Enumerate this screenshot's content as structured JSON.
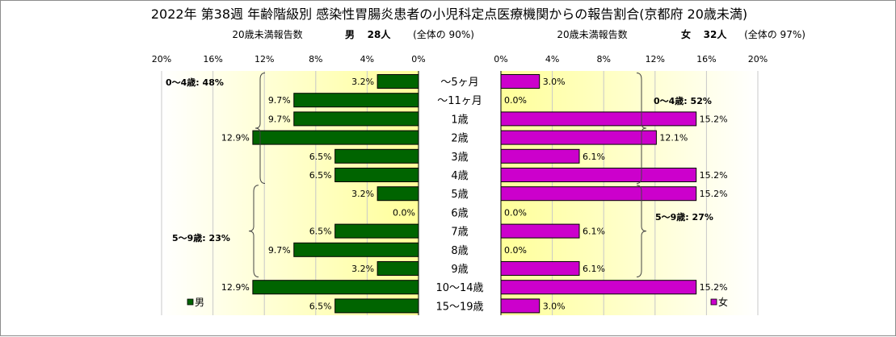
{
  "chart_data": {
    "type": "bar",
    "title": "2022年 第38週 年齢階級別 感染性胃腸炎患者の小児科定点医療機関からの報告割合(京都府 20歳未満)",
    "categories": [
      "～5ヶ月",
      "～11ヶ月",
      "1歳",
      "2歳",
      "3歳",
      "4歳",
      "5歳",
      "6歳",
      "7歳",
      "8歳",
      "9歳",
      "10～14歳",
      "15～19歳"
    ],
    "xlim": [
      0,
      20
    ],
    "tick_labels": [
      "0%",
      "4%",
      "8%",
      "12%",
      "16%",
      "20%"
    ],
    "series": [
      {
        "name": "男",
        "color": "#006400",
        "values": [
          3.2,
          9.7,
          9.7,
          12.9,
          6.5,
          6.5,
          3.2,
          0.0,
          6.5,
          9.7,
          3.2,
          12.9,
          6.5
        ],
        "value_labels": [
          "3.2%",
          "9.7%",
          "9.7%",
          "12.9%",
          "6.5%",
          "6.5%",
          "3.2%",
          "0.0%",
          "6.5%",
          "9.7%",
          "3.2%",
          "12.9%",
          "6.5%"
        ]
      },
      {
        "name": "女",
        "color": "#cc00cc",
        "values": [
          3.0,
          0.0,
          15.2,
          12.1,
          6.1,
          15.2,
          15.2,
          0.0,
          6.1,
          0.0,
          6.1,
          15.2,
          3.0
        ],
        "value_labels": [
          "3.0%",
          "0.0%",
          "15.2%",
          "12.1%",
          "6.1%",
          "15.2%",
          "15.2%",
          "0.0%",
          "6.1%",
          "0.0%",
          "6.1%",
          "15.2%",
          "3.0%"
        ]
      }
    ],
    "left_header": {
      "label": "20歳未満報告数",
      "sex": "男",
      "count": "28人",
      "note": "(全体の 90%)"
    },
    "right_header": {
      "label": "20歳未満報告数",
      "sex": "女",
      "count": "32人",
      "note": "(全体の 97%)"
    },
    "group_annotations": {
      "male_0_4": "0～4歳: 48%",
      "male_5_9": "5～9歳: 23%",
      "female_0_4": "0～4歳: 52%",
      "female_5_9": "5～9歳: 27%"
    },
    "legend": {
      "male": "男",
      "female": "女"
    },
    "grid": true,
    "plot_background": "gradient yellow"
  }
}
